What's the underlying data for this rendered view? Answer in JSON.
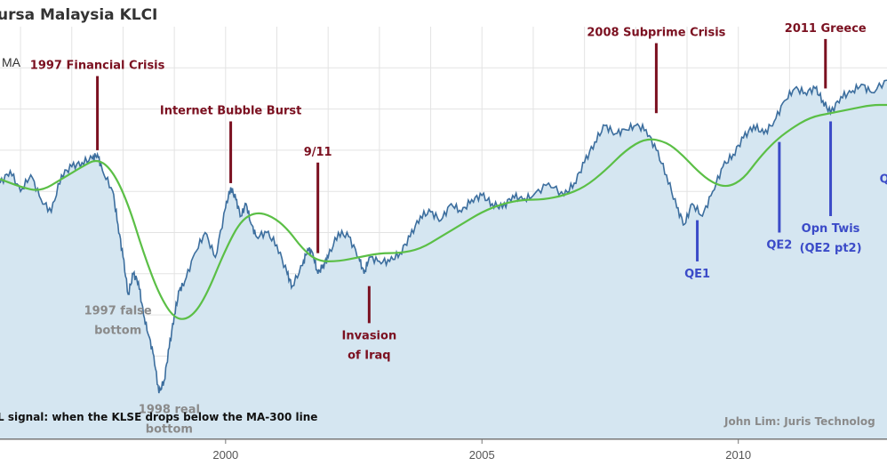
{
  "chart_data": {
    "type": "area",
    "title": "ursa Malaysia KLCI",
    "subtitle": "MA",
    "xlim": [
      1995.6,
      2012.9
    ],
    "ylim": [
      0,
      100
    ],
    "x_ticks": [
      2000,
      2005,
      2010
    ],
    "x_tick_labels": [
      "2000",
      "2005",
      "2010"
    ],
    "grid": "vertical-and-horizontal",
    "series": [
      {
        "name": "",
        "kind": "price",
        "color": "#3c6e9e",
        "fill": "#d5e6f1",
        "points": [
          [
            1995.6,
            62
          ],
          [
            1995.8,
            65
          ],
          [
            1996.0,
            60
          ],
          [
            1996.2,
            64
          ],
          [
            1996.4,
            58
          ],
          [
            1996.6,
            55
          ],
          [
            1996.8,
            64
          ],
          [
            1997.0,
            66
          ],
          [
            1997.2,
            67
          ],
          [
            1997.4,
            68
          ],
          [
            1997.5,
            69
          ],
          [
            1997.6,
            65
          ],
          [
            1997.8,
            60
          ],
          [
            1997.9,
            52
          ],
          [
            1998.0,
            44
          ],
          [
            1998.1,
            35
          ],
          [
            1998.2,
            40
          ],
          [
            1998.3,
            38
          ],
          [
            1998.4,
            30
          ],
          [
            1998.5,
            25
          ],
          [
            1998.6,
            20
          ],
          [
            1998.7,
            11
          ],
          [
            1998.8,
            14
          ],
          [
            1998.9,
            22
          ],
          [
            1999.0,
            30
          ],
          [
            1999.1,
            36
          ],
          [
            1999.2,
            38
          ],
          [
            1999.4,
            45
          ],
          [
            1999.6,
            50
          ],
          [
            1999.8,
            44
          ],
          [
            2000.0,
            56
          ],
          [
            2000.1,
            61
          ],
          [
            2000.2,
            58
          ],
          [
            2000.3,
            54
          ],
          [
            2000.4,
            57
          ],
          [
            2000.5,
            52
          ],
          [
            2000.6,
            49
          ],
          [
            2000.8,
            50
          ],
          [
            2001.0,
            47
          ],
          [
            2001.2,
            40
          ],
          [
            2001.3,
            37
          ],
          [
            2001.5,
            42
          ],
          [
            2001.6,
            46
          ],
          [
            2001.7,
            45
          ],
          [
            2001.8,
            40
          ],
          [
            2001.9,
            42
          ],
          [
            2002.0,
            44
          ],
          [
            2002.2,
            50
          ],
          [
            2002.4,
            49
          ],
          [
            2002.6,
            44
          ],
          [
            2002.7,
            40
          ],
          [
            2002.8,
            44
          ],
          [
            2003.0,
            43
          ],
          [
            2003.2,
            43
          ],
          [
            2003.4,
            45
          ],
          [
            2003.6,
            49
          ],
          [
            2003.8,
            54
          ],
          [
            2004.0,
            55
          ],
          [
            2004.2,
            53
          ],
          [
            2004.4,
            57
          ],
          [
            2004.6,
            55
          ],
          [
            2004.8,
            58
          ],
          [
            2005.0,
            59
          ],
          [
            2005.2,
            57
          ],
          [
            2005.4,
            56
          ],
          [
            2005.6,
            59
          ],
          [
            2005.8,
            58
          ],
          [
            2006.0,
            59
          ],
          [
            2006.3,
            62
          ],
          [
            2006.6,
            59
          ],
          [
            2006.8,
            62
          ],
          [
            2007.0,
            67
          ],
          [
            2007.2,
            72
          ],
          [
            2007.4,
            76
          ],
          [
            2007.6,
            74
          ],
          [
            2007.8,
            75
          ],
          [
            2008.0,
            76
          ],
          [
            2008.2,
            75
          ],
          [
            2008.4,
            70
          ],
          [
            2008.6,
            64
          ],
          [
            2008.8,
            56
          ],
          [
            2008.95,
            52
          ],
          [
            2009.1,
            57
          ],
          [
            2009.3,
            54
          ],
          [
            2009.5,
            60
          ],
          [
            2009.7,
            66
          ],
          [
            2009.9,
            69
          ],
          [
            2010.1,
            73
          ],
          [
            2010.3,
            76
          ],
          [
            2010.5,
            74
          ],
          [
            2010.7,
            77
          ],
          [
            2010.9,
            82
          ],
          [
            2011.1,
            85
          ],
          [
            2011.3,
            84
          ],
          [
            2011.5,
            85
          ],
          [
            2011.65,
            82
          ],
          [
            2011.8,
            79
          ],
          [
            2012.0,
            83
          ],
          [
            2012.2,
            84
          ],
          [
            2012.4,
            86
          ],
          [
            2012.6,
            84
          ],
          [
            2012.9,
            87
          ]
        ]
      },
      {
        "name": "MA",
        "kind": "moving-average",
        "color": "#5bbf46",
        "points": [
          [
            1995.6,
            63
          ],
          [
            1996.0,
            61
          ],
          [
            1996.4,
            60
          ],
          [
            1996.8,
            63
          ],
          [
            1997.2,
            66
          ],
          [
            1997.5,
            68
          ],
          [
            1997.8,
            65
          ],
          [
            1998.1,
            57
          ],
          [
            1998.4,
            45
          ],
          [
            1998.7,
            35
          ],
          [
            1999.0,
            29
          ],
          [
            1999.3,
            29
          ],
          [
            1999.6,
            34
          ],
          [
            2000.0,
            46
          ],
          [
            2000.3,
            53
          ],
          [
            2000.6,
            55
          ],
          [
            2000.9,
            54
          ],
          [
            2001.2,
            51
          ],
          [
            2001.5,
            46
          ],
          [
            2001.8,
            43
          ],
          [
            2002.2,
            43
          ],
          [
            2002.6,
            44
          ],
          [
            2003.0,
            45
          ],
          [
            2003.4,
            45
          ],
          [
            2003.8,
            46
          ],
          [
            2004.2,
            49
          ],
          [
            2004.6,
            52
          ],
          [
            2005.0,
            55
          ],
          [
            2005.4,
            57
          ],
          [
            2005.8,
            58
          ],
          [
            2006.2,
            58
          ],
          [
            2006.6,
            59
          ],
          [
            2007.0,
            61
          ],
          [
            2007.4,
            65
          ],
          [
            2007.8,
            70
          ],
          [
            2008.2,
            73
          ],
          [
            2008.6,
            72
          ],
          [
            2008.9,
            69
          ],
          [
            2009.2,
            65
          ],
          [
            2009.5,
            62
          ],
          [
            2009.8,
            61
          ],
          [
            2010.1,
            63
          ],
          [
            2010.4,
            68
          ],
          [
            2010.7,
            72
          ],
          [
            2011.0,
            75
          ],
          [
            2011.4,
            78
          ],
          [
            2011.8,
            79
          ],
          [
            2012.2,
            80
          ],
          [
            2012.6,
            81
          ],
          [
            2012.9,
            81
          ]
        ]
      }
    ],
    "annotations": [
      {
        "lines": [
          "1997 Financial Crisis"
        ],
        "color": "red",
        "x": 1997.5,
        "marker_y": 70,
        "marker_len": 18,
        "dir": "above"
      },
      {
        "lines": [
          "Internet Bubble Burst"
        ],
        "color": "red",
        "x": 2000.1,
        "marker_y": 62,
        "marker_len": 15,
        "dir": "above"
      },
      {
        "lines": [
          "9/11"
        ],
        "color": "red",
        "x": 2001.8,
        "marker_y": 45,
        "marker_len": 22,
        "dir": "above"
      },
      {
        "lines": [
          "2008 Subprime Crisis"
        ],
        "color": "red",
        "x": 2008.4,
        "marker_y": 79,
        "marker_len": 17,
        "dir": "above"
      },
      {
        "lines": [
          "2011 Greece"
        ],
        "color": "red",
        "x": 2011.7,
        "marker_y": 85,
        "marker_len": 12,
        "dir": "above"
      },
      {
        "lines": [
          "Invasion",
          "of Iraq"
        ],
        "color": "red",
        "x": 2002.8,
        "marker_y": 37,
        "marker_len": 9,
        "dir": "below"
      },
      {
        "lines": [
          "QE1"
        ],
        "color": "blue",
        "x": 2009.2,
        "marker_y": 53,
        "marker_len": 10,
        "dir": "below"
      },
      {
        "lines": [
          "QE2"
        ],
        "color": "blue",
        "x": 2010.8,
        "marker_y": 72,
        "marker_len": 22,
        "dir": "below"
      },
      {
        "lines": [
          "Opn Twis",
          "(QE2 pt2)"
        ],
        "color": "blue",
        "x": 2011.8,
        "marker_y": 77,
        "marker_len": 23,
        "dir": "below"
      },
      {
        "lines": [
          "Q"
        ],
        "color": "blue",
        "x": 2012.85,
        "marker_y": 66,
        "marker_len": 0,
        "dir": "below"
      },
      {
        "lines": [
          "1997 false",
          "bottom"
        ],
        "color": "gray",
        "x": 1997.9,
        "marker_y": 34,
        "marker_len": 0,
        "dir": "below"
      },
      {
        "lines": [
          "1998 real",
          "bottom"
        ],
        "color": "gray",
        "x": 1998.9,
        "marker_y": 10,
        "marker_len": 0,
        "dir": "below"
      }
    ],
    "footnote": "L signal: when the KLSE drops below the MA-300 line",
    "credit": "John Lim: Juris Technolog"
  }
}
